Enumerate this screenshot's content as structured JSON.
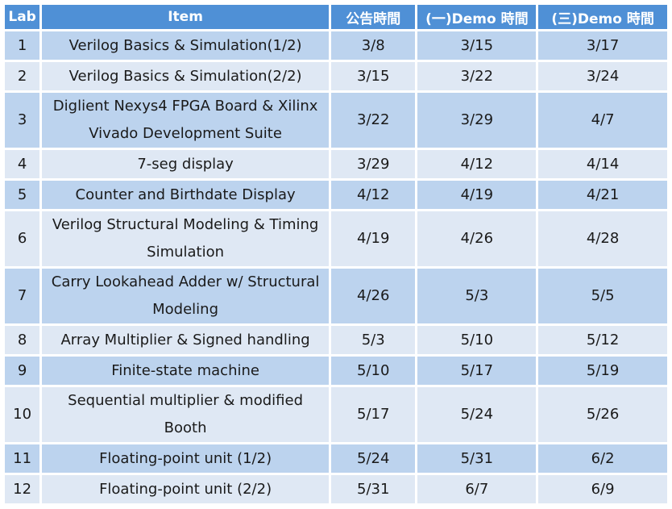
{
  "table": {
    "headers": [
      "Lab",
      "Item",
      "公告時間",
      "(一)Demo 時間",
      "(三)Demo 時間"
    ],
    "rows": [
      {
        "lab": "1",
        "item": "Verilog Basics & Simulation(1/2)",
        "announce": "3/8",
        "demo_mon": "3/15",
        "demo_wed": "3/17"
      },
      {
        "lab": "2",
        "item": "Verilog Basics & Simulation(2/2)",
        "announce": "3/15",
        "demo_mon": "3/22",
        "demo_wed": "3/24"
      },
      {
        "lab": "3",
        "item": "Diglient Nexys4 FPGA Board & Xilinx Vivado Development Suite",
        "announce": "3/22",
        "demo_mon": "3/29",
        "demo_wed": "4/7"
      },
      {
        "lab": "4",
        "item": "7-seg display",
        "announce": "3/29",
        "demo_mon": "4/12",
        "demo_wed": "4/14"
      },
      {
        "lab": "5",
        "item": "Counter and Birthdate Display",
        "announce": "4/12",
        "demo_mon": "4/19",
        "demo_wed": "4/21"
      },
      {
        "lab": "6",
        "item": "Verilog Structural Modeling & Timing Simulation",
        "announce": "4/19",
        "demo_mon": "4/26",
        "demo_wed": "4/28"
      },
      {
        "lab": "7",
        "item": "Carry Lookahead Adder w/ Structural Modeling",
        "announce": "4/26",
        "demo_mon": "5/3",
        "demo_wed": "5/5"
      },
      {
        "lab": "8",
        "item": "Array Multiplier & Signed handling",
        "announce": "5/3",
        "demo_mon": "5/10",
        "demo_wed": "5/12"
      },
      {
        "lab": "9",
        "item": "Finite-state machine",
        "announce": "5/10",
        "demo_mon": "5/17",
        "demo_wed": "5/19"
      },
      {
        "lab": "10",
        "item": "Sequential multiplier   & modified Booth",
        "announce": "5/17",
        "demo_mon": "5/24",
        "demo_wed": "5/26"
      },
      {
        "lab": "11",
        "item": "Floating-point unit (1/2)",
        "announce": "5/24",
        "demo_mon": "5/31",
        "demo_wed": "6/2"
      },
      {
        "lab": "12",
        "item": "Floating-point unit (2/2)",
        "announce": "5/31",
        "demo_mon": "6/7",
        "demo_wed": "6/9"
      }
    ]
  },
  "colors": {
    "header_bg": "#4f90d6",
    "row_dark": "#bcd3ee",
    "row_light": "#dfe8f4"
  }
}
